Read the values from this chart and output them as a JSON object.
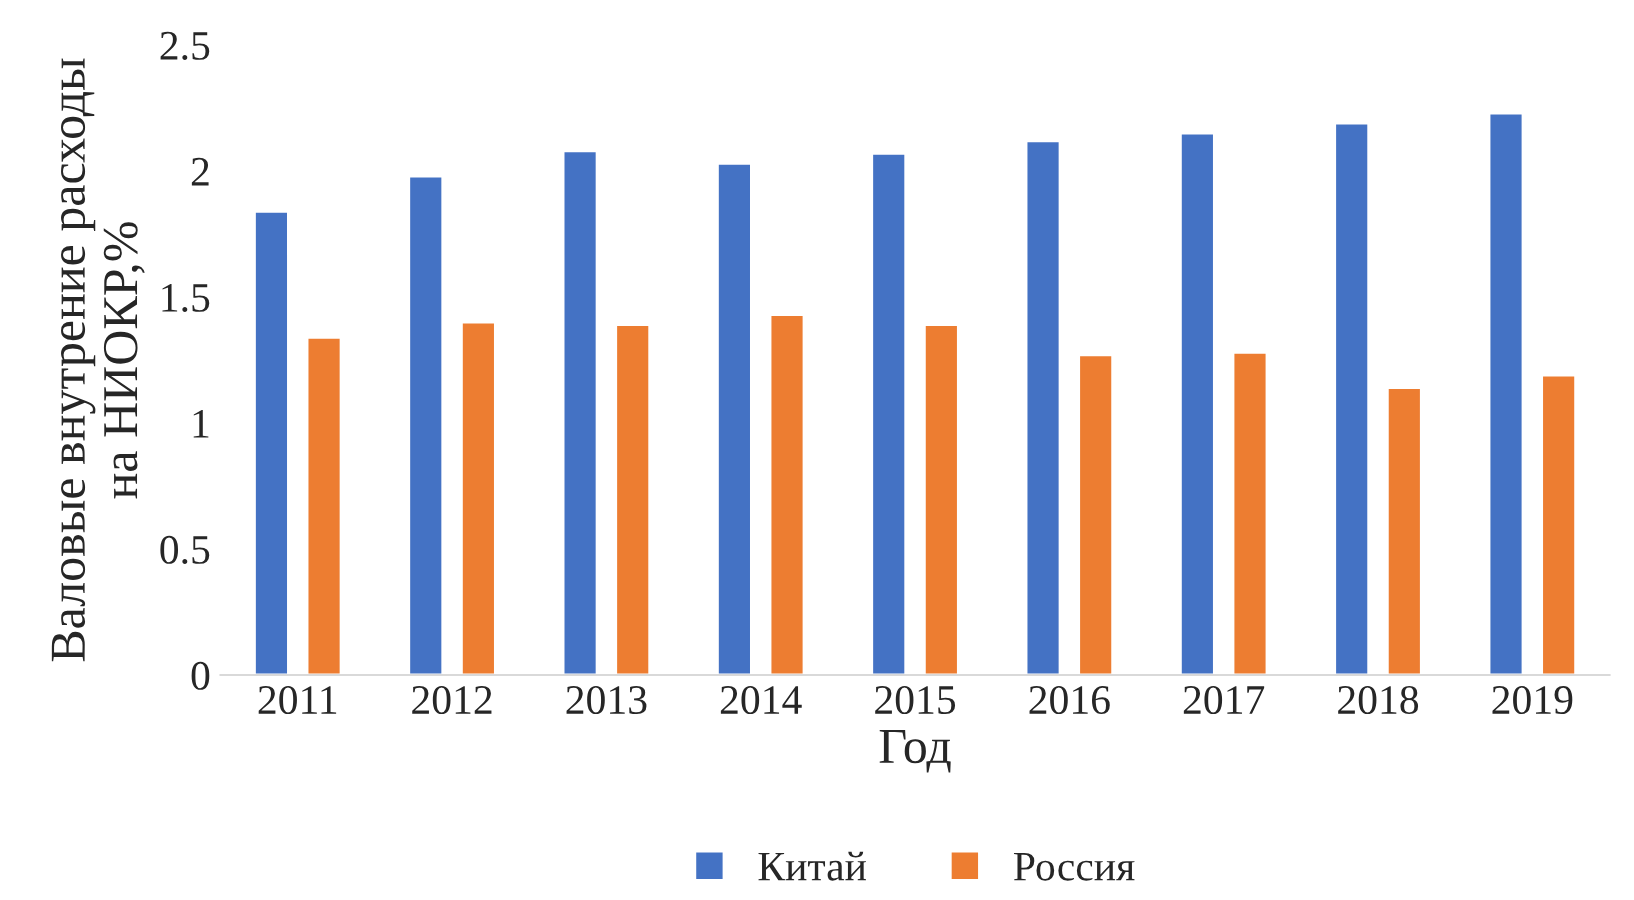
{
  "chart_data": {
    "type": "bar",
    "xlabel": "Год",
    "ylabel": "Валовые внутрение расходы\nна НИОКР,%",
    "categories": [
      "2011",
      "2012",
      "2013",
      "2014",
      "2015",
      "2016",
      "2017",
      "2018",
      "2019"
    ],
    "series": [
      {
        "name": "Китай",
        "color": "#4472c4",
        "values": [
          1.84,
          1.98,
          2.08,
          2.03,
          2.07,
          2.12,
          2.15,
          2.19,
          2.23
        ]
      },
      {
        "name": "Россия",
        "color": "#ed7d31",
        "values": [
          1.34,
          1.4,
          1.39,
          1.43,
          1.39,
          1.27,
          1.28,
          1.14,
          1.19
        ]
      }
    ],
    "ylim": [
      0,
      2.5
    ],
    "yticks": [
      0,
      0.5,
      1,
      1.5,
      2,
      2.5
    ],
    "grid": false,
    "legend": "bottom"
  }
}
